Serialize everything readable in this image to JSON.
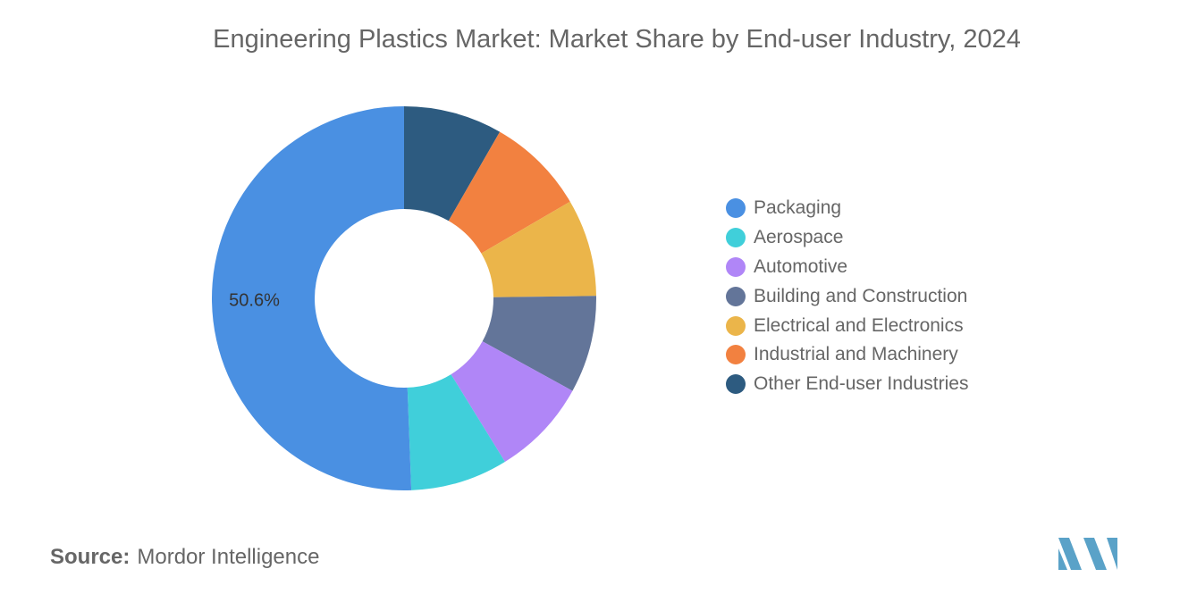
{
  "chart_data": {
    "type": "pie",
    "title": "Engineering Plastics Market: Market Share by End-user Industry, 2024",
    "donut": true,
    "legend_position": "right",
    "series": [
      {
        "name": "Packaging",
        "value": 50.6,
        "color": "#4a90e2",
        "label": "50.6%"
      },
      {
        "name": "Aerospace",
        "value": 8.2,
        "color": "#40cfda",
        "label": ""
      },
      {
        "name": "Automotive",
        "value": 8.2,
        "color": "#b086f7",
        "label": ""
      },
      {
        "name": "Building and Construction",
        "value": 8.2,
        "color": "#637599",
        "label": ""
      },
      {
        "name": "Electrical and Electronics",
        "value": 8.2,
        "color": "#ebb54a",
        "label": ""
      },
      {
        "name": "Industrial and Machinery",
        "value": 8.3,
        "color": "#f28140",
        "label": ""
      },
      {
        "name": "Other End-user Industries",
        "value": 8.3,
        "color": "#2d5b80",
        "label": ""
      }
    ]
  },
  "source": {
    "label": "Source:",
    "value": "Mordor Intelligence"
  },
  "logo": {
    "name": "mordor-intelligence-logo",
    "color": "#5aa2c8"
  }
}
